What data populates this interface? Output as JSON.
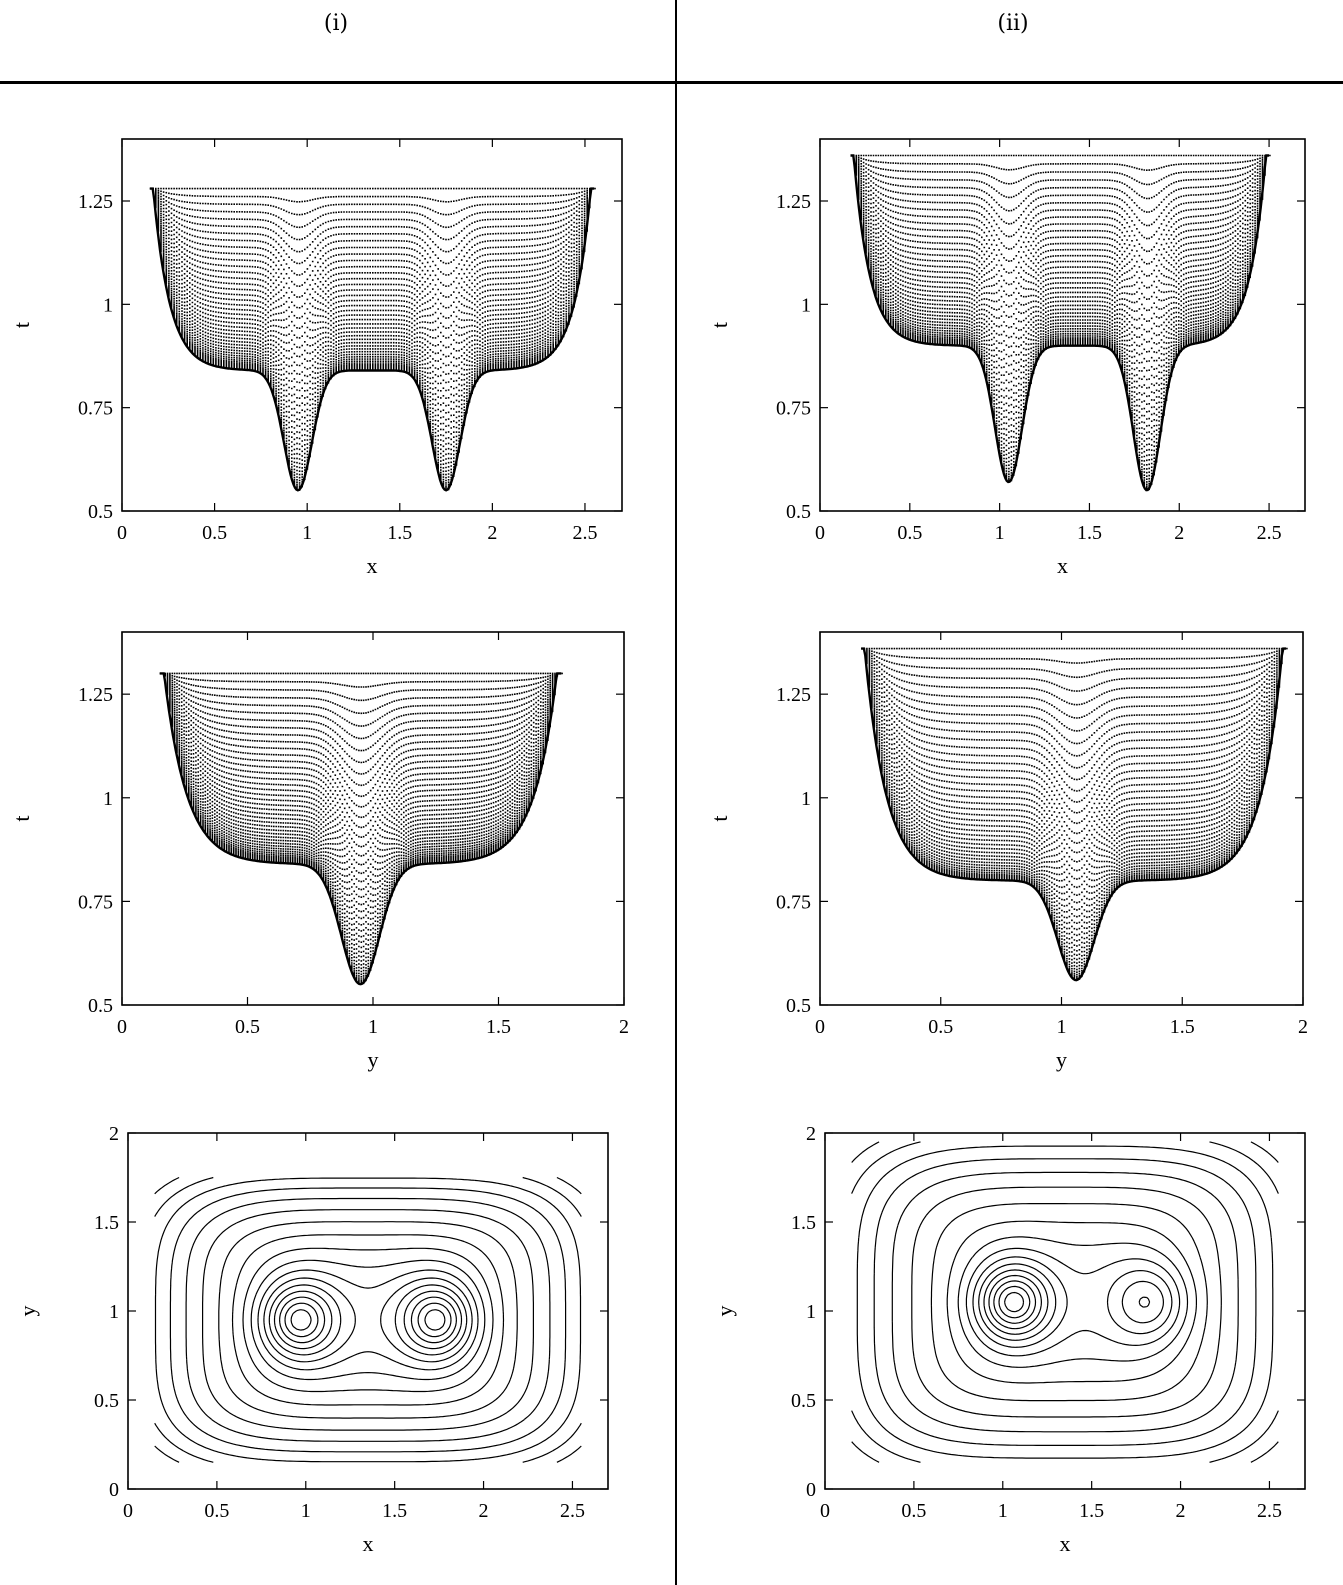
{
  "headers": {
    "left": "(i)",
    "right": "(ii)"
  },
  "chart_data": [
    {
      "id": "i-xt",
      "type": "scatter",
      "column": "(i)",
      "xlabel": "x",
      "ylabel": "t",
      "xlim": [
        0,
        2.7
      ],
      "ylim": [
        0.5,
        1.4
      ],
      "xticks": [
        0,
        0.5,
        1,
        1.5,
        2,
        2.5
      ],
      "xtick_labels": [
        "0",
        "0.5",
        "1",
        "1.5",
        "2",
        "2.5"
      ],
      "yticks": [
        0.5,
        0.75,
        1,
        1.25
      ],
      "ytick_labels": [
        "0.5",
        "0.75",
        "1",
        "1.25"
      ],
      "shape": {
        "x_range": [
          0.15,
          2.55
        ],
        "top_t": 1.28,
        "shelf_t": 0.84,
        "wells": [
          {
            "center": 0.95,
            "min_t": 0.55
          },
          {
            "center": 1.75,
            "min_t": 0.55
          }
        ]
      }
    },
    {
      "id": "ii-xt",
      "type": "scatter",
      "column": "(ii)",
      "xlabel": "x",
      "ylabel": "t",
      "xlim": [
        0,
        2.7
      ],
      "ylim": [
        0.5,
        1.4
      ],
      "xticks": [
        0,
        0.5,
        1,
        1.5,
        2,
        2.5
      ],
      "xtick_labels": [
        "0",
        "0.5",
        "1",
        "1.5",
        "2",
        "2.5"
      ],
      "yticks": [
        0.5,
        0.75,
        1,
        1.25
      ],
      "ytick_labels": [
        "0.5",
        "0.75",
        "1",
        "1.25"
      ],
      "shape": {
        "x_range": [
          0.17,
          2.5
        ],
        "top_t": 1.36,
        "shelf_t": 0.9,
        "wells": [
          {
            "center": 1.05,
            "min_t": 0.57
          },
          {
            "center": 1.82,
            "min_t": 0.55
          }
        ]
      }
    },
    {
      "id": "i-yt",
      "type": "scatter",
      "column": "(i)",
      "xlabel": "y",
      "ylabel": "t",
      "xlim": [
        0,
        2
      ],
      "ylim": [
        0.5,
        1.4
      ],
      "xticks": [
        0,
        0.5,
        1,
        1.5,
        2
      ],
      "xtick_labels": [
        "0",
        "0.5",
        "1",
        "1.5",
        "2"
      ],
      "yticks": [
        0.5,
        0.75,
        1,
        1.25
      ],
      "ytick_labels": [
        "0.5",
        "0.75",
        "1",
        "1.25"
      ],
      "shape": {
        "x_range": [
          0.15,
          1.75
        ],
        "top_t": 1.3,
        "shelf_t": 0.84,
        "wells": [
          {
            "center": 0.95,
            "min_t": 0.55
          }
        ]
      }
    },
    {
      "id": "ii-yt",
      "type": "scatter",
      "column": "(ii)",
      "xlabel": "y",
      "ylabel": "t",
      "xlim": [
        0,
        2
      ],
      "ylim": [
        0.5,
        1.4
      ],
      "xticks": [
        0,
        0.5,
        1,
        1.5,
        2
      ],
      "xtick_labels": [
        "0",
        "0.5",
        "1",
        "1.5",
        "2"
      ],
      "yticks": [
        0.5,
        0.75,
        1,
        1.25
      ],
      "ytick_labels": [
        "0.5",
        "0.75",
        "1",
        "1.25"
      ],
      "shape": {
        "x_range": [
          0.17,
          1.93
        ],
        "top_t": 1.36,
        "shelf_t": 0.8,
        "wells": [
          {
            "center": 1.06,
            "min_t": 0.56
          }
        ]
      }
    },
    {
      "id": "i-xy",
      "type": "contour",
      "column": "(i)",
      "xlabel": "x",
      "ylabel": "y",
      "xlim": [
        0,
        2.7
      ],
      "ylim": [
        0,
        2
      ],
      "xticks": [
        0,
        0.5,
        1,
        1.5,
        2,
        2.5
      ],
      "xtick_labels": [
        "0",
        "0.5",
        "1",
        "1.5",
        "2",
        "2.5"
      ],
      "yticks": [
        0,
        0.5,
        1,
        1.5,
        2
      ],
      "ytick_labels": [
        "0",
        "0.5",
        "1",
        "1.5",
        "2"
      ],
      "domain": {
        "x": [
          0.15,
          2.55
        ],
        "y": [
          0.15,
          1.75
        ]
      },
      "wells": [
        {
          "x": 0.95,
          "y": 0.95,
          "depth": 1.0
        },
        {
          "x": 1.75,
          "y": 0.95,
          "depth": 1.0
        }
      ]
    },
    {
      "id": "ii-xy",
      "type": "contour",
      "column": "(ii)",
      "xlabel": "x",
      "ylabel": "y",
      "xlim": [
        0,
        2.7
      ],
      "ylim": [
        0,
        2
      ],
      "xticks": [
        0,
        0.5,
        1,
        1.5,
        2,
        2.5
      ],
      "xtick_labels": [
        "0",
        "0.5",
        "1",
        "1.5",
        "2",
        "2.5"
      ],
      "yticks": [
        0,
        0.5,
        1,
        1.5,
        2
      ],
      "ytick_labels": [
        "0",
        "0.5",
        "1",
        "1.5",
        "2"
      ],
      "domain": {
        "x": [
          0.15,
          2.55
        ],
        "y": [
          0.15,
          1.95
        ]
      },
      "wells": [
        {
          "x": 1.05,
          "y": 1.05,
          "depth": 1.25
        },
        {
          "x": 1.83,
          "y": 1.05,
          "depth": 0.8
        }
      ]
    }
  ]
}
